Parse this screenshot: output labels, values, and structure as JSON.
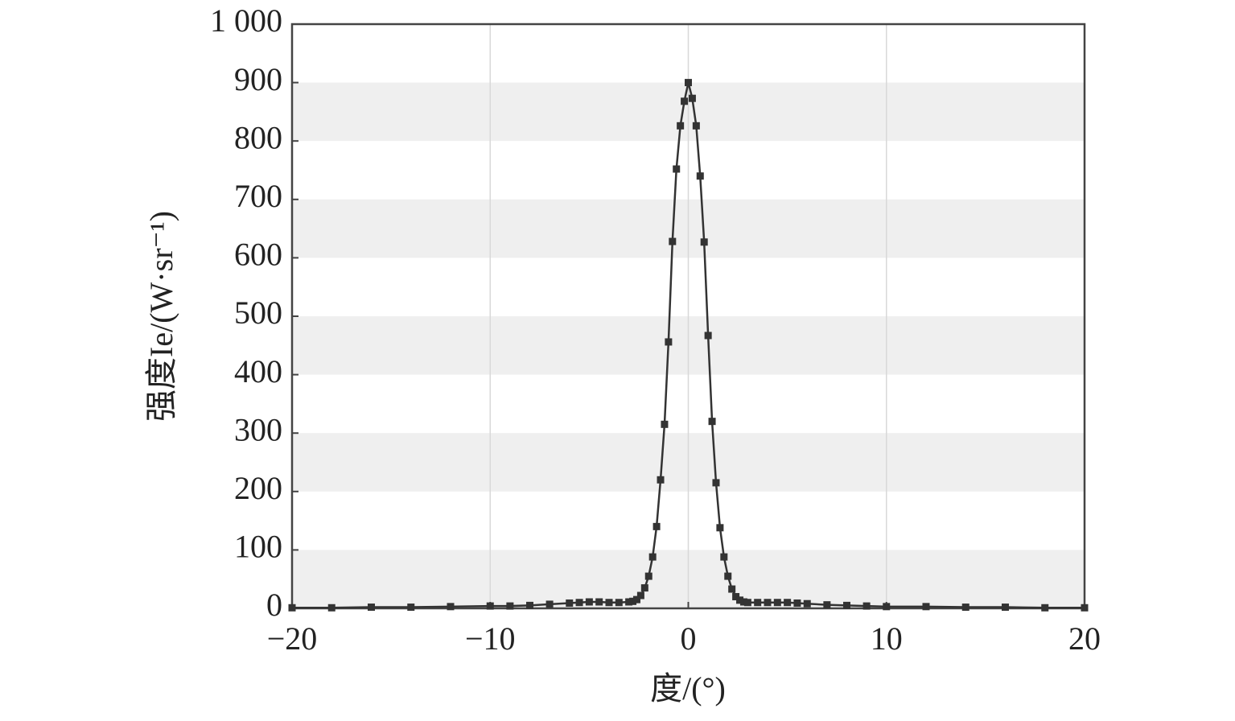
{
  "chart_data": {
    "type": "line",
    "x_label": "度/(°)",
    "y_label": "强度Ie/(W·sr⁻¹)",
    "x": [
      -20,
      -18,
      -16,
      -14,
      -12,
      -10,
      -9,
      -8,
      -7,
      -6,
      -5.5,
      -5,
      -4.5,
      -4,
      -3.5,
      -3,
      -2.8,
      -2.6,
      -2.4,
      -2.2,
      -2,
      -1.8,
      -1.6,
      -1.4,
      -1.2,
      -1,
      -0.8,
      -0.6,
      -0.4,
      -0.2,
      0,
      0.2,
      0.4,
      0.6,
      0.8,
      1,
      1.2,
      1.4,
      1.6,
      1.8,
      2,
      2.2,
      2.4,
      2.6,
      2.8,
      3,
      3.5,
      4,
      4.5,
      5,
      5.5,
      6,
      7,
      8,
      9,
      10,
      12,
      14,
      16,
      18,
      20
    ],
    "series": [
      {
        "color": "#333333",
        "values": [
          1,
          1,
          2,
          2,
          3,
          4,
          4,
          5,
          7,
          9,
          10,
          11,
          11,
          10,
          10,
          11,
          12,
          15,
          22,
          35,
          55,
          88,
          140,
          220,
          315,
          456,
          628,
          752,
          826,
          868,
          900,
          873,
          826,
          740,
          627,
          467,
          320,
          215,
          138,
          88,
          55,
          33,
          20,
          14,
          11,
          10,
          10,
          10,
          10,
          10,
          9,
          8,
          6,
          5,
          4,
          3,
          3,
          2,
          2,
          1,
          1
        ]
      }
    ],
    "xlim": [
      -20,
      20
    ],
    "xticks": [
      {
        "value": -20,
        "label": "−20"
      },
      {
        "value": -10,
        "label": "−10"
      },
      0,
      10,
      20
    ],
    "ylim": [
      0,
      1000
    ],
    "yticks": [
      0,
      100,
      200,
      300,
      400,
      500,
      600,
      700,
      800,
      900,
      {
        "value": 1000,
        "label": "1 000"
      }
    ],
    "grid": true,
    "bands": true
  }
}
